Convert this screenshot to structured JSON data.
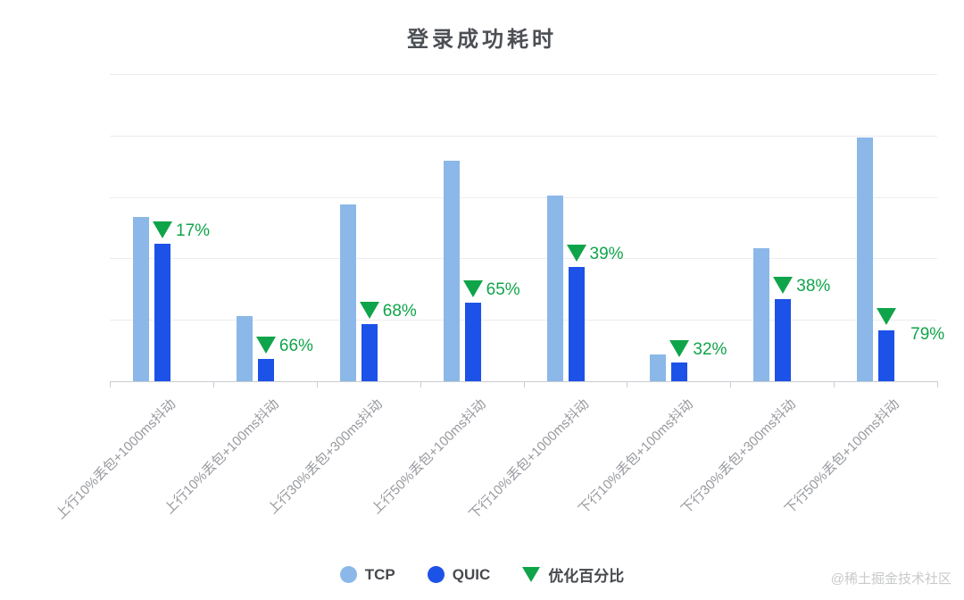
{
  "title": "登录成功耗时",
  "watermark": "@稀土掘金技术社区",
  "colors": {
    "tcp": "#8bb8e8",
    "quic": "#1d52e8",
    "optimization": "#10a44a",
    "gridline": "#ececf0",
    "axis": "#c9ccd2",
    "axis_label": "#97999e",
    "title_text": "#4c4f54"
  },
  "legend": {
    "items": [
      {
        "label": "TCP",
        "marker": "circle",
        "color": "#8bb8e8"
      },
      {
        "label": "QUIC",
        "marker": "circle",
        "color": "#1d52e8"
      },
      {
        "label": "优化百分比",
        "marker": "triangle-down",
        "color": "#10a44a"
      }
    ]
  },
  "chart_data": {
    "type": "bar",
    "title": "登录成功耗时",
    "categories": [
      "上行10%丢包+1000ms抖动",
      "上行10%丢包+100ms抖动",
      "上行30%丢包+300ms抖动",
      "上行50%丢包+100ms抖动",
      "下行10%丢包+1000ms抖动",
      "下行10%丢包+100ms抖动",
      "下行30%丢包+300ms抖动",
      "下行50%丢包+100ms抖动"
    ],
    "series": [
      {
        "name": "TCP",
        "type": "bar",
        "color": "#8bb8e8",
        "values": [
          2.67,
          1.06,
          2.88,
          3.59,
          3.02,
          0.44,
          2.17,
          3.97
        ]
      },
      {
        "name": "QUIC",
        "type": "bar",
        "color": "#1d52e8",
        "values": [
          2.24,
          0.36,
          0.93,
          1.28,
          1.86,
          0.3,
          1.34,
          0.83
        ]
      },
      {
        "name": "优化百分比",
        "type": "marker-triangle-down",
        "color": "#10a44a",
        "values": [
          17,
          66,
          68,
          65,
          39,
          32,
          38,
          79
        ],
        "labels": [
          "17%",
          "66%",
          "68%",
          "65%",
          "39%",
          "32%",
          "38%",
          "79%"
        ]
      }
    ],
    "xlabel": "",
    "ylabel": "",
    "ylim": [
      0,
      5
    ],
    "y_axis_tick_labels_visible": false,
    "gridlines": true,
    "legend_position": "bottom",
    "note": "y-axis has no visible tick labels; bar values estimated in gridline units (1 unit = one horizontal gridline interval); 优化百分比 = QUIC reduction vs TCP shown as green down-triangle + percent above each QUIC bar"
  }
}
